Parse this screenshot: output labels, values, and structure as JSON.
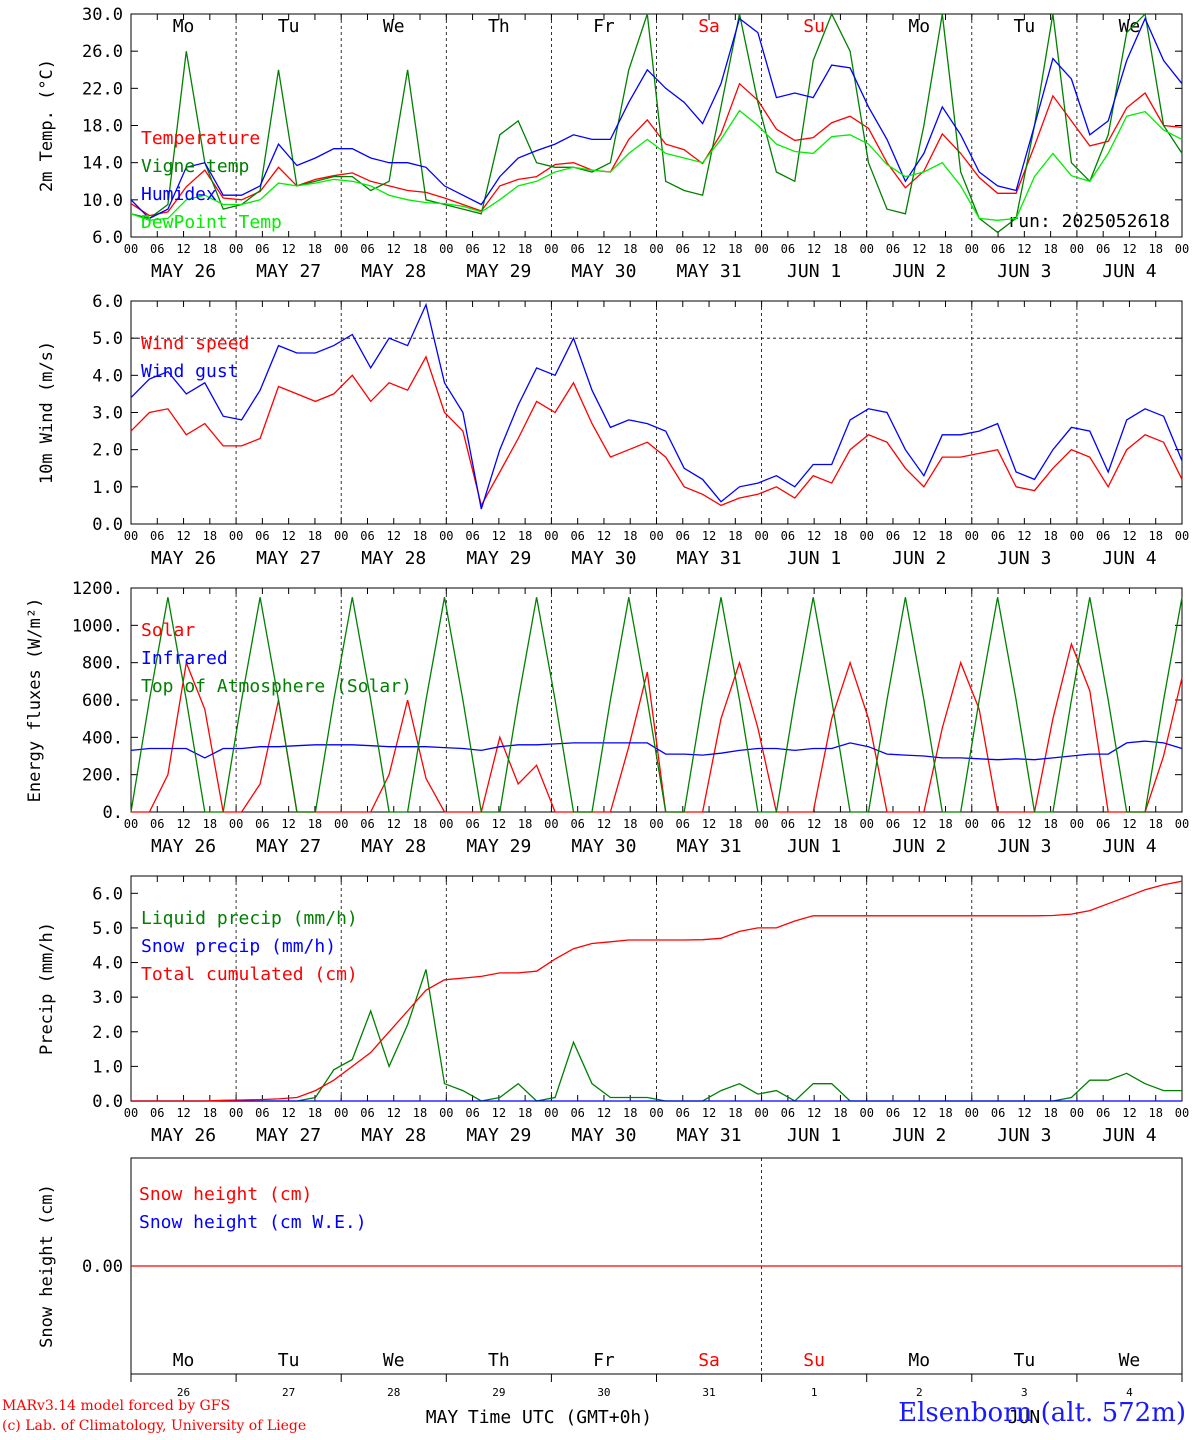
{
  "chart_data": {
    "type": "line",
    "run_label": "run: 2025052618",
    "x_hour_ticks": [
      "00",
      "06",
      "12",
      "18"
    ],
    "day_dates": [
      "MAY 26",
      "MAY 27",
      "MAY 28",
      "MAY 29",
      "MAY 30",
      "MAY 31",
      "JUN  1",
      "JUN  2",
      "JUN  3",
      "JUN  4"
    ],
    "weekdays": [
      {
        "label": "Mo",
        "weekend": false
      },
      {
        "label": "Tu",
        "weekend": false
      },
      {
        "label": "We",
        "weekend": false
      },
      {
        "label": "Th",
        "weekend": false
      },
      {
        "label": "Fr",
        "weekend": false
      },
      {
        "label": "Sa",
        "weekend": true
      },
      {
        "label": "Su",
        "weekend": true
      },
      {
        "label": "Mo",
        "weekend": false
      },
      {
        "label": "Tu",
        "weekend": false
      },
      {
        "label": "We",
        "weekend": false
      }
    ],
    "panels": [
      {
        "ylabel": "2m Temp. (°C)",
        "ylim": [
          6,
          30
        ],
        "yticks": [
          "6.0",
          "10.0",
          "14.0",
          "18.0",
          "22.0",
          "26.0",
          "30.0"
        ],
        "ytick_values": [
          6,
          10,
          14,
          18,
          22,
          26,
          30
        ],
        "series": [
          {
            "name": "Temperature",
            "color": "#ff0000",
            "values": [
              9.6,
              8.3,
              8.7,
              11.4,
              13.2,
              10.2,
              10.0,
              10.9,
              13.5,
              11.5,
              12.2,
              12.6,
              12.9,
              12.0,
              11.5,
              11.0,
              10.8,
              10.2,
              9.5,
              8.8,
              11.5,
              12.2,
              12.5,
              13.8,
              14.0,
              13.2,
              13.0,
              16.5,
              18.6,
              16.0,
              15.4,
              13.9,
              17.1,
              22.5,
              20.7,
              17.6,
              16.4,
              16.7,
              18.3,
              19.0,
              17.7,
              14.0,
              11.3,
              13.1,
              17.1,
              15.0,
              12.4,
              10.7,
              10.7,
              15.8,
              21.2,
              18.5,
              15.8,
              16.3,
              19.9,
              21.5,
              18.0,
              17.8
            ]
          },
          {
            "name": "Vigne temp",
            "color": "#008000",
            "values": [
              8.5,
              8.0,
              9.5,
              26.0,
              14.0,
              9.0,
              9.5,
              11.0,
              24.0,
              11.5,
              12.0,
              12.5,
              12.5,
              11.0,
              12.0,
              24.0,
              10.0,
              9.5,
              9.0,
              8.5,
              17.0,
              18.5,
              14.0,
              13.5,
              13.5,
              13.0,
              14.0,
              24.0,
              30.0,
              12.0,
              11.0,
              10.5,
              20.0,
              30.0,
              20.5,
              13.0,
              12.0,
              25.0,
              30.0,
              26.0,
              14.0,
              9.0,
              8.5,
              18.0,
              30.0,
              13.0,
              8.0,
              6.5,
              8.0,
              18.0,
              30.0,
              14.0,
              12.0,
              17.0,
              28.0,
              30.0,
              18.0,
              15.0
            ]
          },
          {
            "name": "Humidex",
            "color": "#0000ff",
            "values": [
              10.0,
              8.0,
              9.0,
              13.5,
              14.0,
              10.5,
              10.5,
              11.5,
              16.0,
              13.7,
              14.5,
              15.5,
              15.5,
              14.5,
              14.0,
              14.0,
              13.5,
              11.5,
              10.5,
              9.5,
              12.5,
              14.5,
              15.3,
              16.0,
              17.0,
              16.5,
              16.5,
              20.5,
              24.0,
              22.0,
              20.5,
              18.2,
              22.5,
              29.5,
              28.0,
              21.0,
              21.5,
              21.0,
              24.5,
              24.2,
              20.0,
              16.5,
              12.0,
              15.0,
              20.0,
              17.0,
              13.0,
              11.5,
              11.0,
              18.0,
              25.2,
              23.0,
              17.0,
              18.5,
              25.0,
              29.5,
              25.0,
              22.5
            ]
          },
          {
            "name": "DewPoint Temp",
            "color": "#00ee00",
            "values": [
              8.5,
              7.8,
              8.0,
              10.0,
              10.5,
              9.5,
              9.5,
              10.0,
              11.8,
              11.5,
              11.8,
              12.2,
              12.0,
              11.5,
              10.5,
              10.0,
              9.7,
              9.6,
              9.3,
              8.7,
              10.0,
              11.5,
              12.0,
              13.0,
              13.5,
              13.2,
              13.0,
              15.0,
              16.5,
              15.0,
              14.5,
              14.0,
              16.5,
              19.6,
              18.0,
              16.0,
              15.2,
              15.0,
              16.8,
              17.0,
              16.0,
              13.8,
              12.5,
              13.0,
              14.0,
              11.5,
              8.0,
              7.8,
              8.0,
              12.5,
              15.0,
              12.6,
              12.0,
              15.0,
              19.0,
              19.5,
              17.5,
              16.5
            ]
          }
        ]
      },
      {
        "ylabel": "10m Wind (m/s)",
        "ylim": [
          0,
          6
        ],
        "yticks": [
          "0.0",
          "1.0",
          "2.0",
          "3.0",
          "4.0",
          "5.0",
          "6.0"
        ],
        "ytick_values": [
          0,
          1,
          2,
          3,
          4,
          5,
          6
        ],
        "series": [
          {
            "name": "Wind speed",
            "color": "#ff0000",
            "values": [
              2.5,
              3.0,
              3.1,
              2.4,
              2.7,
              2.1,
              2.1,
              2.3,
              3.7,
              3.5,
              3.3,
              3.5,
              4.0,
              3.3,
              3.8,
              3.6,
              4.5,
              3.0,
              2.5,
              0.5,
              1.4,
              2.3,
              3.3,
              3.0,
              3.8,
              2.7,
              1.8,
              2.0,
              2.2,
              1.8,
              1.0,
              0.8,
              0.5,
              0.7,
              0.8,
              1.0,
              0.7,
              1.3,
              1.1,
              2.0,
              2.4,
              2.2,
              1.5,
              1.0,
              1.8,
              1.8,
              1.9,
              2.0,
              1.0,
              0.9,
              1.5,
              2.0,
              1.8,
              1.0,
              2.0,
              2.4,
              2.2,
              1.2
            ]
          },
          {
            "name": "Wind gust",
            "color": "#0000ff",
            "values": [
              3.4,
              3.9,
              4.1,
              3.5,
              3.8,
              2.9,
              2.8,
              3.6,
              4.8,
              4.6,
              4.6,
              4.8,
              5.1,
              4.2,
              5.0,
              4.8,
              5.9,
              3.8,
              3.0,
              0.4,
              2.0,
              3.2,
              4.2,
              4.0,
              5.0,
              3.6,
              2.6,
              2.8,
              2.7,
              2.5,
              1.5,
              1.2,
              0.6,
              1.0,
              1.1,
              1.3,
              1.0,
              1.6,
              1.6,
              2.8,
              3.1,
              3.0,
              2.0,
              1.3,
              2.4,
              2.4,
              2.5,
              2.7,
              1.4,
              1.2,
              2.0,
              2.6,
              2.5,
              1.4,
              2.8,
              3.1,
              2.9,
              1.7
            ]
          }
        ]
      },
      {
        "ylabel": "Energy fluxes (W/m²)",
        "ylim": [
          0,
          1200
        ],
        "yticks": [
          "0.",
          "200.",
          "400.",
          "600.",
          "800.",
          "1000.",
          "1200."
        ],
        "ytick_values": [
          0,
          200,
          400,
          600,
          800,
          1000,
          1200
        ],
        "series": [
          {
            "name": "Solar",
            "color": "#ff0000",
            "values": [
              0,
              0,
              200,
              800,
              550,
              0,
              0,
              150,
              600,
              0,
              0,
              0,
              0,
              0,
              200,
              600,
              180,
              0,
              0,
              0,
              400,
              150,
              250,
              0,
              0,
              0,
              0,
              350,
              750,
              0,
              0,
              0,
              500,
              800,
              450,
              0,
              0,
              0,
              500,
              800,
              500,
              0,
              0,
              0,
              450,
              800,
              550,
              0,
              0,
              0,
              500,
              900,
              650,
              0,
              0,
              0,
              300,
              720
            ]
          },
          {
            "name": "Infrared",
            "color": "#0000ff",
            "values": [
              330,
              340,
              340,
              340,
              290,
              340,
              340,
              350,
              350,
              355,
              360,
              360,
              360,
              355,
              350,
              350,
              350,
              345,
              340,
              330,
              350,
              360,
              360,
              365,
              370,
              370,
              370,
              370,
              370,
              310,
              310,
              305,
              315,
              330,
              340,
              340,
              330,
              340,
              340,
              370,
              350,
              310,
              305,
              300,
              290,
              290,
              285,
              280,
              285,
              280,
              290,
              300,
              310,
              310,
              370,
              380,
              370,
              340
            ]
          },
          {
            "name": "Top of Atmosphere (Solar)",
            "color": "#008000",
            "values": [
              0,
              600,
              1150,
              600,
              0,
              0,
              600,
              1150,
              600,
              0,
              0,
              600,
              1150,
              600,
              0,
              0,
              600,
              1150,
              600,
              0,
              0,
              600,
              1150,
              600,
              0,
              0,
              600,
              1150,
              600,
              0,
              0,
              600,
              1150,
              600,
              0,
              0,
              600,
              1150,
              600,
              0,
              0,
              600,
              1150,
              600,
              0,
              0,
              600,
              1150,
              600,
              0,
              0,
              600,
              1150,
              600,
              0,
              0,
              600,
              1150
            ]
          }
        ]
      },
      {
        "ylabel": "Precip (mm/h)",
        "ylim": [
          0,
          6.5
        ],
        "yticks": [
          "0.0",
          "1.0",
          "2.0",
          "3.0",
          "4.0",
          "5.0",
          "6.0"
        ],
        "ytick_values": [
          0,
          1,
          2,
          3,
          4,
          5,
          6
        ],
        "series": [
          {
            "name": "Liquid precip (mm/h)",
            "color": "#008000",
            "values": [
              0,
              0,
              0,
              0,
              0,
              0,
              0,
              0,
              0,
              0,
              0.1,
              0.9,
              1.2,
              2.6,
              1.0,
              2.2,
              3.8,
              0.5,
              0.3,
              0,
              0.1,
              0.5,
              0,
              0.1,
              1.7,
              0.5,
              0.1,
              0.1,
              0.1,
              0,
              0,
              0,
              0.3,
              0.5,
              0.2,
              0.3,
              0,
              0.5,
              0.5,
              0,
              0,
              0,
              0,
              0,
              0,
              0,
              0,
              0,
              0,
              0,
              0,
              0.1,
              0.6,
              0.6,
              0.8,
              0.5,
              0.3,
              0.3
            ]
          },
          {
            "name": "Snow precip (mm/h)",
            "color": "#0000ff",
            "values": [
              0,
              0,
              0,
              0,
              0,
              0,
              0,
              0,
              0,
              0,
              0,
              0,
              0,
              0,
              0,
              0,
              0,
              0,
              0,
              0,
              0,
              0,
              0,
              0,
              0,
              0,
              0,
              0,
              0,
              0,
              0,
              0,
              0,
              0,
              0,
              0,
              0,
              0,
              0,
              0,
              0,
              0,
              0,
              0,
              0,
              0,
              0,
              0,
              0,
              0,
              0,
              0,
              0,
              0,
              0,
              0,
              0,
              0
            ]
          },
          {
            "name": "Total cumulated (cm)",
            "color": "#ff0000",
            "values": [
              0,
              0,
              0,
              0,
              0,
              0.02,
              0.03,
              0.04,
              0.06,
              0.1,
              0.3,
              0.6,
              1.0,
              1.4,
              2.0,
              2.6,
              3.2,
              3.5,
              3.55,
              3.6,
              3.7,
              3.7,
              3.75,
              4.1,
              4.4,
              4.55,
              4.6,
              4.65,
              4.65,
              4.65,
              4.65,
              4.66,
              4.7,
              4.9,
              5.0,
              5.0,
              5.2,
              5.35,
              5.35,
              5.35,
              5.35,
              5.35,
              5.35,
              5.35,
              5.35,
              5.35,
              5.35,
              5.35,
              5.35,
              5.35,
              5.36,
              5.4,
              5.5,
              5.7,
              5.9,
              6.1,
              6.25,
              6.35
            ]
          }
        ]
      },
      {
        "ylabel": "Snow height (cm)",
        "ylim": [
          -1,
          1
        ],
        "yticks": [
          "0.00"
        ],
        "ytick_values": [
          0
        ],
        "series": [
          {
            "name": "Snow height (cm)",
            "color": "#ff0000",
            "values": [
              0,
              0
            ]
          },
          {
            "name": "Snow height (cm W.E.)",
            "color": "#0000ff",
            "values": []
          }
        ]
      }
    ],
    "bottom_axis": {
      "day_numbers": [
        "26",
        "27",
        "28",
        "29",
        "30",
        "31",
        "1",
        "2",
        "3",
        "4"
      ],
      "month_left": "MAY",
      "month_right": "JUN",
      "xlabel": "Time UTC (GMT+0h)"
    }
  },
  "footer": {
    "credit_line1": "MARv3.14 model forced by GFS",
    "credit_line2": "(c) Lab. of Climatology, University of Liege",
    "station": "Elsenborn (alt. 572m)"
  }
}
